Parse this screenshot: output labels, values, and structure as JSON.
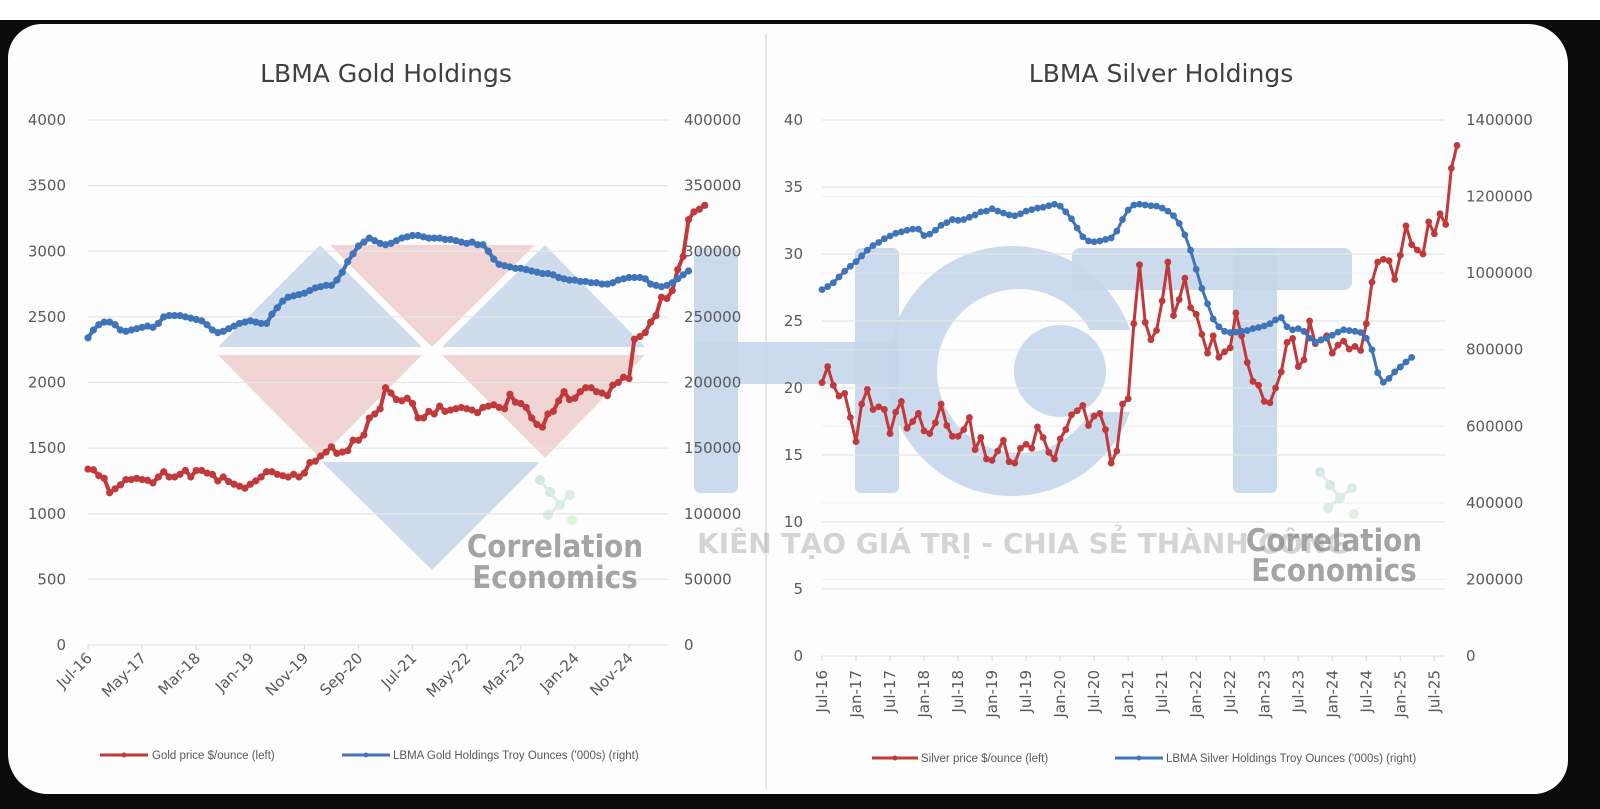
{
  "watermark": {
    "brand": "HCT",
    "slogan": "KIÊN TẠO GIÁ TRỊ - CHIA SẺ THÀNH CÔNG",
    "credit_line1": "Correlation",
    "credit_line2": "Economics"
  },
  "colors": {
    "price_line": "#c0393b",
    "holdings_line": "#3f74b8",
    "watermark_blue": "#c5d6ea",
    "watermark_red": "#efcccd"
  },
  "chart_data": [
    {
      "type": "line",
      "title": "LBMA Gold Holdings",
      "xlabel": "",
      "ylabel_left": "Gold price $/ounce",
      "ylabel_right": "LBMA Gold Holdings Troy Ounces ('000s)",
      "x_start": "Jul-16",
      "x_end": "Jul-25",
      "x_frequency": "monthly",
      "x_tick_labels": [
        "Jul-16",
        "May-17",
        "Mar-18",
        "Jan-19",
        "Nov-19",
        "Sep-20",
        "Jul-21",
        "May-22",
        "Mar-23",
        "Jan-24",
        "Nov-24"
      ],
      "y_left_ticks": [
        "0",
        "500",
        "1000",
        "1500",
        "2000",
        "2500",
        "3000",
        "3500",
        "4000"
      ],
      "y_right_ticks": [
        "0",
        "50000",
        "100000",
        "150000",
        "200000",
        "250000",
        "300000",
        "350000",
        "400000"
      ],
      "ylim_left": [
        0,
        4000
      ],
      "ylim_right": [
        0,
        400000
      ],
      "grid": true,
      "legend_position": "bottom",
      "series": [
        {
          "name": "Gold price $/ounce (left)",
          "axis": "left",
          "values": [
            1340,
            1335,
            1290,
            1270,
            1160,
            1190,
            1220,
            1260,
            1260,
            1270,
            1260,
            1255,
            1235,
            1280,
            1320,
            1280,
            1280,
            1300,
            1330,
            1280,
            1330,
            1330,
            1310,
            1300,
            1250,
            1280,
            1245,
            1225,
            1210,
            1195,
            1225,
            1250,
            1280,
            1320,
            1320,
            1300,
            1290,
            1280,
            1300,
            1280,
            1310,
            1390,
            1400,
            1440,
            1470,
            1510,
            1460,
            1470,
            1480,
            1560,
            1560,
            1600,
            1730,
            1760,
            1800,
            1960,
            1920,
            1870,
            1860,
            1880,
            1840,
            1730,
            1730,
            1780,
            1760,
            1820,
            1780,
            1790,
            1800,
            1810,
            1800,
            1790,
            1770,
            1810,
            1820,
            1830,
            1810,
            1800,
            1910,
            1850,
            1840,
            1810,
            1730,
            1680,
            1660,
            1760,
            1780,
            1860,
            1930,
            1870,
            1880,
            1930,
            1960,
            1960,
            1930,
            1920,
            1900,
            1980,
            2000,
            2040,
            2030,
            2330,
            2350,
            2380,
            2460,
            2510,
            2650,
            2640,
            2700,
            2860,
            2960,
            3240,
            3300,
            3320,
            3350
          ],
          "note": "Approximate monthly averages read from chart; last values near Jul-25 ~3350"
        },
        {
          "name": "LBMA Gold Holdings Troy Ounces ('000s) (right)",
          "axis": "right",
          "values": [
            234000,
            240000,
            244000,
            246000,
            246000,
            244000,
            240000,
            239000,
            240000,
            241000,
            242000,
            243000,
            242000,
            245000,
            250000,
            251000,
            251000,
            251000,
            250000,
            249000,
            248000,
            247000,
            244000,
            240000,
            238000,
            239000,
            241000,
            243000,
            245000,
            246000,
            247000,
            246000,
            245000,
            245000,
            252000,
            257000,
            262000,
            265000,
            266000,
            267000,
            268000,
            270000,
            272000,
            273000,
            274000,
            274000,
            278000,
            284000,
            292000,
            298000,
            304000,
            307000,
            310000,
            308000,
            306000,
            305000,
            306000,
            308000,
            310000,
            311000,
            312000,
            312000,
            311000,
            310000,
            310000,
            310000,
            309000,
            309000,
            308000,
            307000,
            306000,
            307000,
            305000,
            305000,
            300000,
            294000,
            290000,
            289000,
            288000,
            287000,
            287000,
            286000,
            285000,
            284000,
            283000,
            283000,
            282000,
            280000,
            279000,
            278000,
            278000,
            277000,
            277000,
            276000,
            276000,
            275000,
            275000,
            276000,
            278000,
            279000,
            280000,
            280000,
            280000,
            279000,
            275000,
            274000,
            273000,
            274000,
            276000,
            279000,
            282000,
            285000
          ]
        }
      ]
    },
    {
      "type": "line",
      "title": "LBMA Silver Holdings",
      "xlabel": "",
      "ylabel_left": "Silver price $/ounce",
      "ylabel_right": "LBMA Silver Holdings Troy Ounces ('000s)",
      "x_start": "Jul-16",
      "x_end": "Jul-25",
      "x_frequency": "monthly",
      "x_tick_labels": [
        "Jul-16",
        "Jan-17",
        "Jul-17",
        "Jan-18",
        "Jul-18",
        "Jan-19",
        "Jul-19",
        "Jan-20",
        "Jul-20",
        "Jan-21",
        "Jul-21",
        "Jan-22",
        "Jul-22",
        "Jan-23",
        "Jul-23",
        "Jan-24",
        "Jul-24",
        "Jan-25",
        "Jul-25"
      ],
      "y_left_ticks": [
        "0",
        "5",
        "10",
        "15",
        "20",
        "25",
        "30",
        "35",
        "40"
      ],
      "y_right_ticks": [
        "0",
        "200000",
        "400000",
        "600000",
        "800000",
        "1000000",
        "1200000",
        "1400000"
      ],
      "ylim_left": [
        0,
        40
      ],
      "ylim_right": [
        0,
        1400000
      ],
      "grid": true,
      "legend_position": "bottom",
      "series": [
        {
          "name": "Silver price $/ounce (left)",
          "axis": "left",
          "values": [
            20.4,
            21.6,
            20.2,
            19.4,
            19.6,
            17.8,
            16.0,
            18.8,
            19.9,
            18.4,
            18.6,
            18.4,
            16.6,
            18.2,
            19.0,
            17.0,
            17.5,
            18.1,
            16.8,
            16.6,
            17.4,
            18.8,
            17.2,
            16.4,
            16.4,
            16.9,
            17.8,
            15.4,
            16.3,
            14.7,
            14.6,
            15.3,
            16.1,
            14.5,
            14.4,
            15.5,
            15.8,
            15.5,
            17.1,
            16.3,
            15.2,
            14.7,
            16.2,
            16.9,
            18.0,
            18.3,
            18.7,
            17.2,
            17.9,
            18.1,
            16.9,
            14.4,
            15.3,
            18.8,
            19.2,
            24.8,
            29.2,
            24.9,
            23.6,
            24.3,
            26.5,
            29.4,
            25.4,
            26.6,
            28.2,
            26.0,
            25.5,
            24.0,
            22.6,
            23.9,
            22.3,
            22.7,
            23.0,
            25.6,
            23.9,
            21.9,
            20.5,
            20.2,
            19.0,
            18.9,
            20.0,
            21.2,
            23.4,
            23.7,
            21.6,
            22.1,
            25.0,
            23.3,
            23.6,
            23.9,
            22.6,
            23.2,
            23.5,
            22.9,
            23.1,
            22.8,
            24.8,
            27.9,
            29.4,
            29.6,
            29.5,
            28.1,
            29.9,
            32.1,
            30.7,
            30.3,
            30.0,
            32.4,
            31.5,
            33.0,
            32.2,
            36.4,
            38.1
          ]
        },
        {
          "name": "LBMA Silver Holdings Troy Ounces ('000s) (right)",
          "axis": "right",
          "values": [
            957000,
            965000,
            975000,
            990000,
            1005000,
            1018000,
            1030000,
            1045000,
            1060000,
            1072000,
            1080000,
            1090000,
            1097000,
            1104000,
            1108000,
            1112000,
            1115000,
            1115000,
            1098000,
            1102000,
            1112000,
            1125000,
            1132000,
            1140000,
            1138000,
            1140000,
            1146000,
            1152000,
            1160000,
            1162000,
            1168000,
            1162000,
            1157000,
            1152000,
            1150000,
            1155000,
            1162000,
            1166000,
            1170000,
            1172000,
            1176000,
            1180000,
            1175000,
            1160000,
            1142000,
            1118000,
            1095000,
            1084000,
            1082000,
            1084000,
            1088000,
            1092000,
            1110000,
            1140000,
            1165000,
            1178000,
            1180000,
            1178000,
            1176000,
            1175000,
            1170000,
            1162000,
            1150000,
            1130000,
            1100000,
            1060000,
            1010000,
            960000,
            920000,
            880000,
            860000,
            848000,
            845000,
            846000,
            848000,
            850000,
            855000,
            858000,
            862000,
            868000,
            878000,
            884000,
            860000,
            852000,
            855000,
            848000,
            830000,
            820000,
            825000,
            830000,
            838000,
            846000,
            852000,
            850000,
            848000,
            845000,
            830000,
            800000,
            740000,
            715000,
            725000,
            742000,
            755000,
            768000,
            780000
          ]
        }
      ]
    }
  ]
}
